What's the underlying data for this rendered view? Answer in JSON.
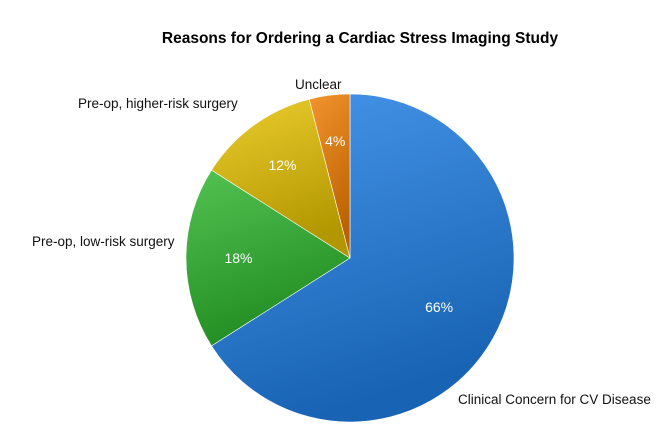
{
  "chart_data": {
    "type": "pie",
    "title": "Reasons for Ordering a Cardiac Stress Imaging Study",
    "start": "12 o'clock",
    "direction": "clockwise",
    "legend": "none",
    "slices": [
      {
        "label": "Clinical Concern for CV Disease",
        "value": 66,
        "display": "66%",
        "color": "#1f7fe6"
      },
      {
        "label": "Pre-op, low-risk surgery",
        "value": 18,
        "display": "18%",
        "color": "#2cb52c"
      },
      {
        "label": "Pre-op, higher-risk surgery",
        "value": 12,
        "display": "12%",
        "color": "#e6c200"
      },
      {
        "label": "Unclear",
        "value": 4,
        "display": "4%",
        "color": "#f07d00"
      }
    ]
  }
}
